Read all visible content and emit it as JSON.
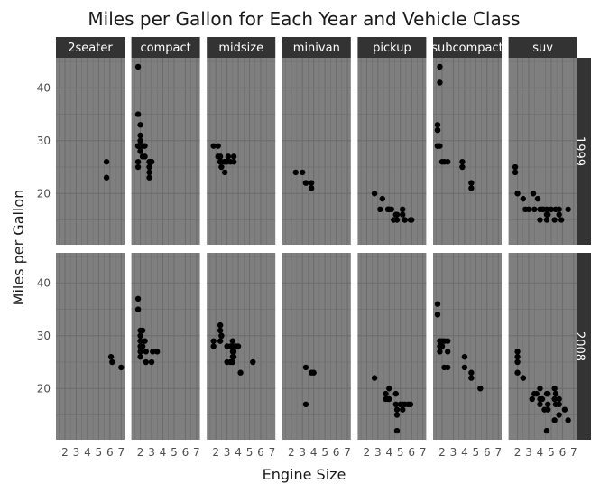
{
  "chart_data": {
    "type": "scatter",
    "title": "Miles per Gallon for Each Year and Vehicle Class",
    "xlabel": "Engine Size",
    "ylabel": "Miles per Gallon",
    "xlim": [
      1.2,
      7.3
    ],
    "ylim": [
      10.3,
      45.7
    ],
    "x_ticks": [
      2,
      3,
      4,
      5,
      6,
      7
    ],
    "y_ticks": [
      20,
      30,
      40
    ],
    "grid": true,
    "facet_cols": [
      "2seater",
      "compact",
      "midsize",
      "minivan",
      "pickup",
      "subcompact",
      "suv"
    ],
    "facet_rows": [
      "1999",
      "2008"
    ],
    "panels": [
      {
        "class": "2seater",
        "year": "1999",
        "points": [
          [
            5.7,
            26
          ],
          [
            5.7,
            23
          ]
        ]
      },
      {
        "class": "compact",
        "year": "1999",
        "points": [
          [
            1.8,
            29
          ],
          [
            1.8,
            29
          ],
          [
            2.0,
            31
          ],
          [
            2.0,
            30
          ],
          [
            2.8,
            26
          ],
          [
            2.8,
            26
          ],
          [
            1.8,
            26
          ],
          [
            1.8,
            25
          ],
          [
            2.0,
            28
          ],
          [
            2.0,
            28
          ],
          [
            2.8,
            25
          ],
          [
            2.8,
            25
          ],
          [
            2.8,
            24
          ],
          [
            2.8,
            23
          ],
          [
            2.4,
            27
          ],
          [
            2.4,
            29
          ],
          [
            3.0,
            26
          ],
          [
            3.0,
            26
          ],
          [
            1.8,
            44
          ],
          [
            1.8,
            35
          ],
          [
            2.0,
            33
          ],
          [
            2.0,
            29
          ],
          [
            2.2,
            27
          ],
          [
            2.2,
            29
          ]
        ]
      },
      {
        "class": "midsize",
        "year": "1999",
        "points": [
          [
            2.8,
            26
          ],
          [
            3.1,
            27
          ],
          [
            2.4,
            27
          ],
          [
            2.4,
            26
          ],
          [
            3.0,
            26
          ],
          [
            3.3,
            26
          ],
          [
            2.5,
            26
          ],
          [
            2.5,
            25
          ],
          [
            2.8,
            26
          ],
          [
            3.6,
            27
          ],
          [
            3.6,
            26
          ],
          [
            1.8,
            29
          ],
          [
            2.2,
            29
          ],
          [
            2.2,
            27
          ],
          [
            2.8,
            26
          ],
          [
            2.8,
            24
          ]
        ]
      },
      {
        "class": "minivan",
        "year": "1999",
        "points": [
          [
            2.4,
            24
          ],
          [
            3.0,
            24
          ],
          [
            3.3,
            22
          ],
          [
            3.3,
            22
          ],
          [
            3.8,
            22
          ],
          [
            3.8,
            21
          ]
        ]
      },
      {
        "class": "pickup",
        "year": "1999",
        "points": [
          [
            2.7,
            20
          ],
          [
            3.4,
            19
          ],
          [
            3.9,
            17
          ],
          [
            3.9,
            17
          ],
          [
            5.2,
            17
          ],
          [
            5.2,
            16
          ],
          [
            4.2,
            17
          ],
          [
            4.7,
            16
          ],
          [
            5.9,
            15
          ],
          [
            4.7,
            15
          ],
          [
            3.2,
            17
          ],
          [
            4.0,
            17
          ],
          [
            4.6,
            16
          ],
          [
            5.4,
            15
          ],
          [
            4.4,
            15
          ],
          [
            5.4,
            15
          ],
          [
            6.0,
            15
          ]
        ]
      },
      {
        "class": "subcompact",
        "year": "1999",
        "points": [
          [
            1.6,
            33
          ],
          [
            1.6,
            32
          ],
          [
            1.6,
            32
          ],
          [
            1.6,
            29
          ],
          [
            1.6,
            29
          ],
          [
            1.8,
            44
          ],
          [
            1.8,
            41
          ],
          [
            1.8,
            29
          ],
          [
            2.0,
            26
          ],
          [
            2.2,
            26
          ],
          [
            2.5,
            26
          ],
          [
            3.8,
            26
          ],
          [
            3.8,
            25
          ],
          [
            4.6,
            22
          ],
          [
            4.6,
            21
          ]
        ]
      },
      {
        "class": "suv",
        "year": "1999",
        "points": [
          [
            1.8,
            25
          ],
          [
            1.8,
            24
          ],
          [
            2.0,
            20
          ],
          [
            2.5,
            19
          ],
          [
            2.7,
            17
          ],
          [
            3.0,
            17
          ],
          [
            3.4,
            20
          ],
          [
            3.8,
            19
          ],
          [
            4.0,
            17
          ],
          [
            4.2,
            17
          ],
          [
            4.6,
            17
          ],
          [
            4.6,
            16
          ],
          [
            5.0,
            17
          ],
          [
            5.4,
            17
          ],
          [
            5.7,
            17
          ],
          [
            5.9,
            15
          ],
          [
            6.5,
            17
          ],
          [
            4.0,
            15
          ],
          [
            4.6,
            15
          ],
          [
            5.3,
            15
          ],
          [
            5.7,
            16
          ],
          [
            4.7,
            16
          ],
          [
            3.5,
            17
          ],
          [
            4.3,
            17
          ]
        ]
      },
      {
        "class": "2seater",
        "year": "2008",
        "points": [
          [
            6.1,
            26
          ],
          [
            6.2,
            25
          ],
          [
            7.0,
            24
          ]
        ]
      },
      {
        "class": "compact",
        "year": "2008",
        "points": [
          [
            1.8,
            37
          ],
          [
            1.8,
            35
          ],
          [
            2.0,
            31
          ],
          [
            2.0,
            30
          ],
          [
            2.0,
            29
          ],
          [
            2.0,
            28
          ],
          [
            2.0,
            27
          ],
          [
            2.2,
            31
          ],
          [
            2.4,
            29
          ],
          [
            2.5,
            25
          ],
          [
            2.5,
            27
          ],
          [
            3.0,
            25
          ],
          [
            3.1,
            27
          ],
          [
            3.5,
            27
          ],
          [
            2.0,
            26
          ],
          [
            2.2,
            28
          ]
        ]
      },
      {
        "class": "midsize",
        "year": "2008",
        "points": [
          [
            2.4,
            31
          ],
          [
            2.4,
            32
          ],
          [
            2.5,
            30
          ],
          [
            2.4,
            29
          ],
          [
            3.0,
            28
          ],
          [
            3.5,
            29
          ],
          [
            3.5,
            26
          ],
          [
            3.3,
            28
          ],
          [
            3.5,
            28
          ],
          [
            3.6,
            26
          ],
          [
            3.8,
            28
          ],
          [
            4.0,
            28
          ],
          [
            4.2,
            23
          ],
          [
            3.0,
            25
          ],
          [
            3.3,
            25
          ],
          [
            3.5,
            25
          ],
          [
            3.5,
            27
          ],
          [
            3.6,
            27
          ],
          [
            1.8,
            28
          ],
          [
            1.8,
            29
          ],
          [
            2.5,
            30
          ],
          [
            5.3,
            25
          ]
        ]
      },
      {
        "class": "minivan",
        "year": "2008",
        "points": [
          [
            3.3,
            17
          ],
          [
            3.3,
            24
          ],
          [
            3.8,
            23
          ],
          [
            4.0,
            23
          ]
        ]
      },
      {
        "class": "pickup",
        "year": "2008",
        "points": [
          [
            2.7,
            22
          ],
          [
            3.7,
            19
          ],
          [
            3.7,
            18
          ],
          [
            3.9,
            18
          ],
          [
            4.0,
            20
          ],
          [
            4.0,
            18
          ],
          [
            4.6,
            19
          ],
          [
            4.6,
            17
          ],
          [
            5.0,
            17
          ],
          [
            5.2,
            17
          ],
          [
            5.2,
            16
          ],
          [
            5.4,
            17
          ],
          [
            5.7,
            17
          ],
          [
            5.9,
            17
          ],
          [
            4.7,
            12
          ],
          [
            4.7,
            15
          ],
          [
            4.7,
            16
          ]
        ]
      },
      {
        "class": "subcompact",
        "year": "2008",
        "points": [
          [
            1.6,
            36
          ],
          [
            1.6,
            34
          ],
          [
            1.8,
            29
          ],
          [
            1.8,
            28
          ],
          [
            1.8,
            27
          ],
          [
            2.0,
            29
          ],
          [
            2.0,
            28
          ],
          [
            2.0,
            28
          ],
          [
            2.2,
            24
          ],
          [
            2.2,
            29
          ],
          [
            2.5,
            24
          ],
          [
            2.5,
            27
          ],
          [
            2.5,
            29
          ],
          [
            4.0,
            26
          ],
          [
            4.0,
            24
          ],
          [
            4.6,
            23
          ],
          [
            4.6,
            22
          ],
          [
            5.4,
            20
          ]
        ]
      },
      {
        "class": "suv",
        "year": "2008",
        "points": [
          [
            2.0,
            27
          ],
          [
            2.0,
            25
          ],
          [
            2.0,
            26
          ],
          [
            2.0,
            23
          ],
          [
            2.5,
            22
          ],
          [
            2.5,
            22
          ],
          [
            3.5,
            19
          ],
          [
            3.7,
            19
          ],
          [
            4.0,
            20
          ],
          [
            4.0,
            18
          ],
          [
            4.0,
            17
          ],
          [
            4.2,
            18
          ],
          [
            4.6,
            19
          ],
          [
            4.7,
            17
          ],
          [
            4.7,
            16
          ],
          [
            4.7,
            19
          ],
          [
            5.3,
            18
          ],
          [
            5.3,
            20
          ],
          [
            5.4,
            17
          ],
          [
            5.4,
            19
          ],
          [
            5.7,
            18
          ],
          [
            5.7,
            17
          ],
          [
            6.2,
            16
          ],
          [
            6.5,
            14
          ],
          [
            3.3,
            18
          ],
          [
            4.4,
            16
          ],
          [
            4.6,
            12
          ],
          [
            5.3,
            14
          ],
          [
            5.7,
            15
          ]
        ]
      }
    ]
  },
  "colors": {
    "panel_bg": "#7f7f7f",
    "grid": "#6b6b6b",
    "strip_bg": "#333333",
    "strip_text": "#ffffff",
    "point": "#000000"
  }
}
